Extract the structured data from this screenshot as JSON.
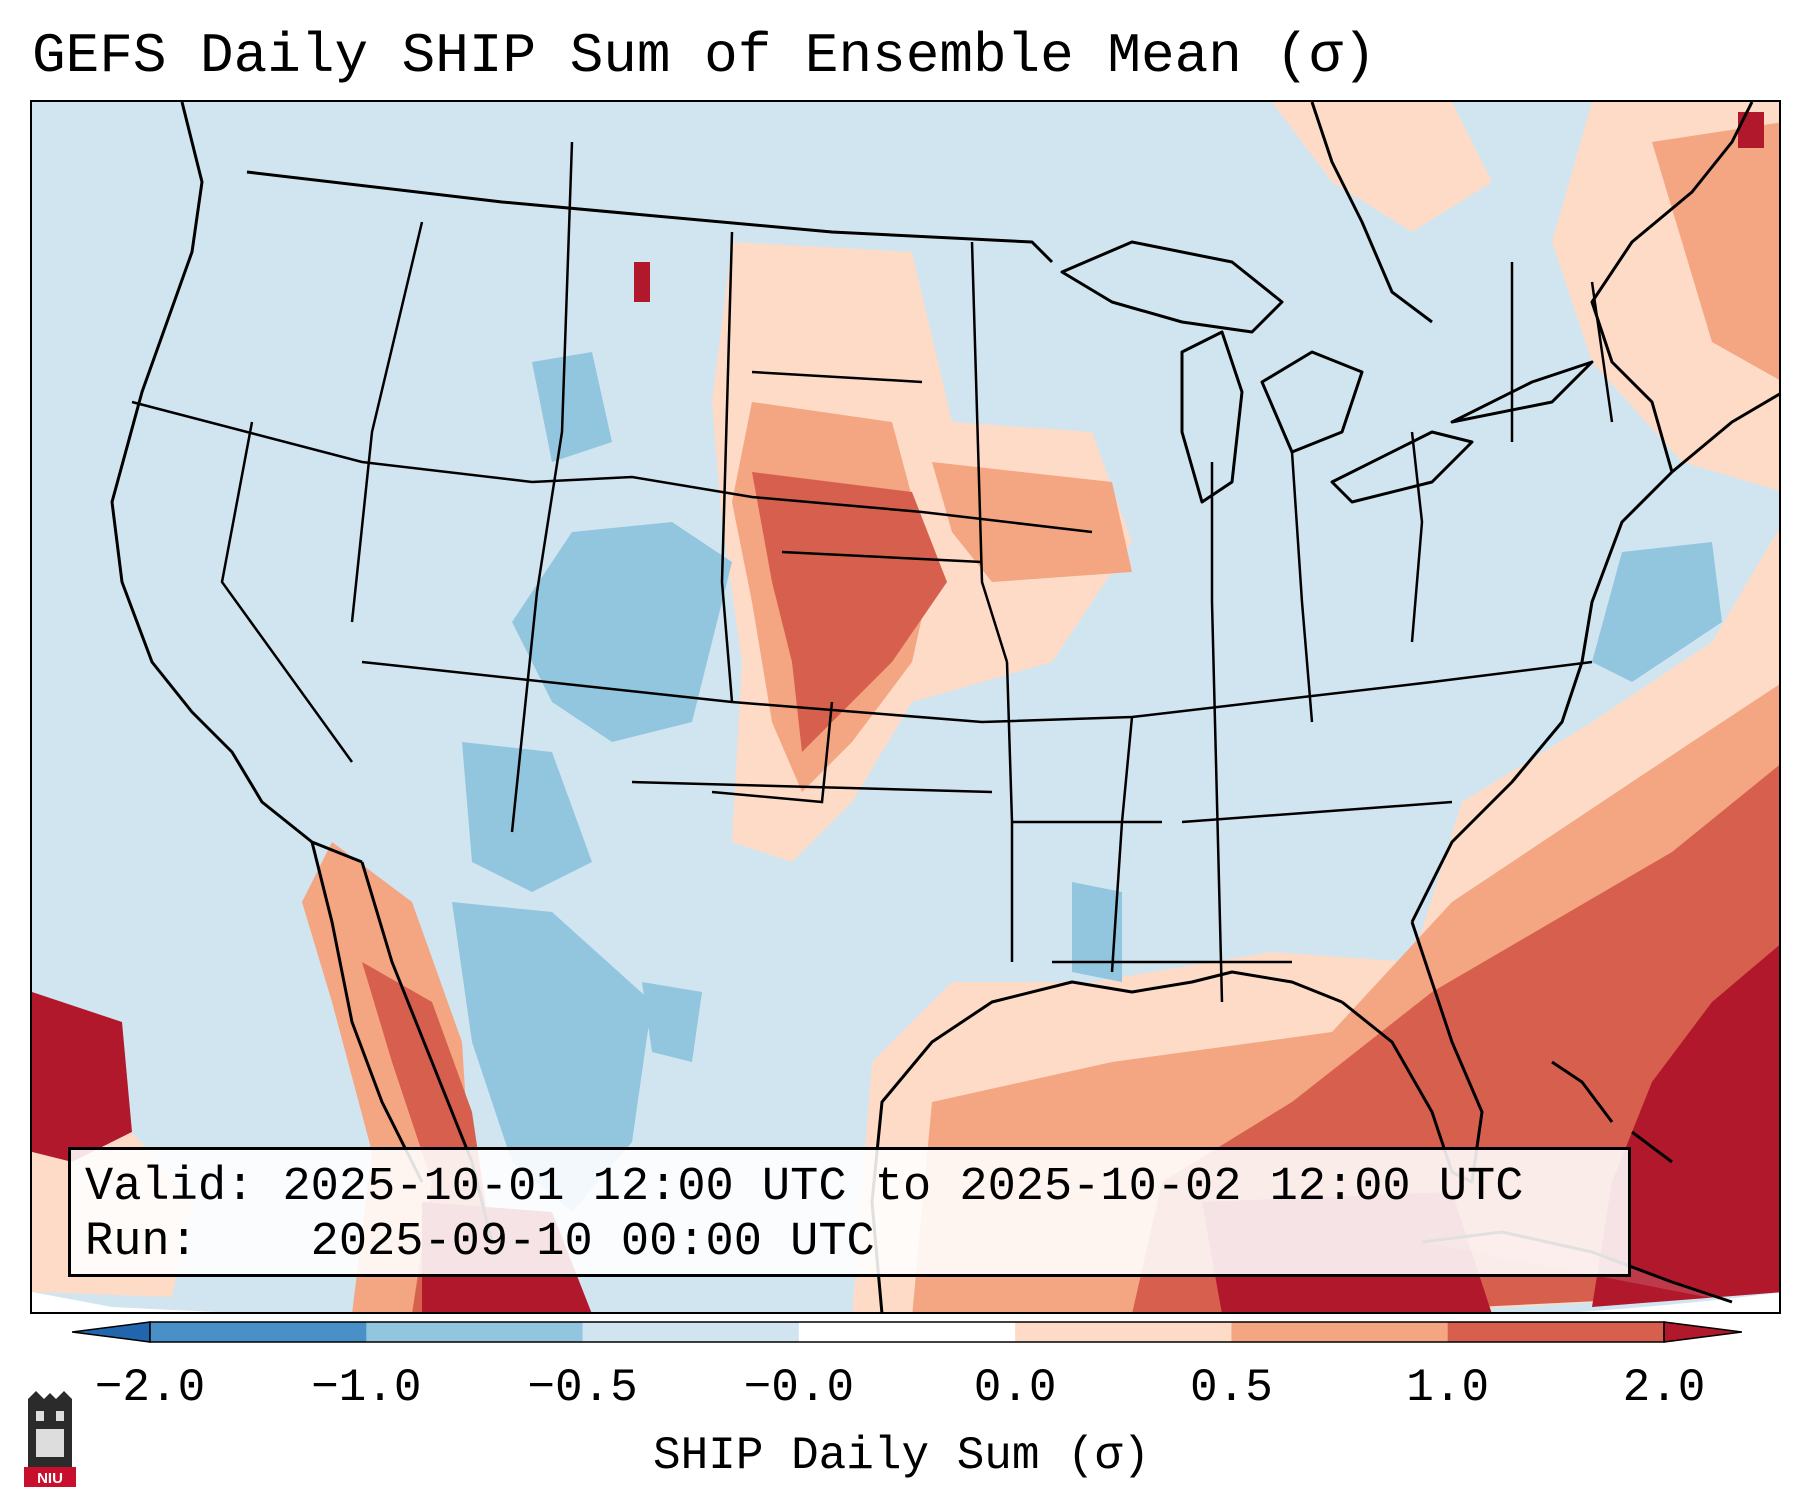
{
  "title": "GEFS Daily SHIP Sum of Ensemble Mean (σ)",
  "info": {
    "valid_label": "Valid:",
    "valid_value": "2025-10-01 12:00 UTC to 2025-10-02 12:00 UTC",
    "run_label": "Run:",
    "run_value": "2025-09-10 00:00 UTC"
  },
  "colorbar": {
    "label": "SHIP Daily Sum (σ)",
    "ticks": [
      "−2.0",
      "−1.0",
      "−0.5",
      "−0.0",
      "0.0",
      "0.5",
      "1.0",
      "2.0"
    ],
    "bins": [
      {
        "from": "-2.0",
        "to": "-1.0",
        "color": "#4a90c8"
      },
      {
        "from": "-1.0",
        "to": "-0.5",
        "color": "#92c5de"
      },
      {
        "from": "-0.5",
        "to": "-0.0",
        "color": "#d1e5f0"
      },
      {
        "from": "-0.0",
        "to": "0.0",
        "color": "#ffffff"
      },
      {
        "from": "0.0",
        "to": "0.5",
        "color": "#fddbc7"
      },
      {
        "from": "0.5",
        "to": "1.0",
        "color": "#f4a582"
      },
      {
        "from": "1.0",
        "to": "2.0",
        "color": "#d6604d"
      }
    ],
    "under_color": "#2166ac",
    "over_color": "#b2182b"
  },
  "map": {
    "background_color": "#d1e5f0",
    "border_color": "#000000"
  },
  "logo": {
    "text": "NIU",
    "color": "#c8102e"
  }
}
